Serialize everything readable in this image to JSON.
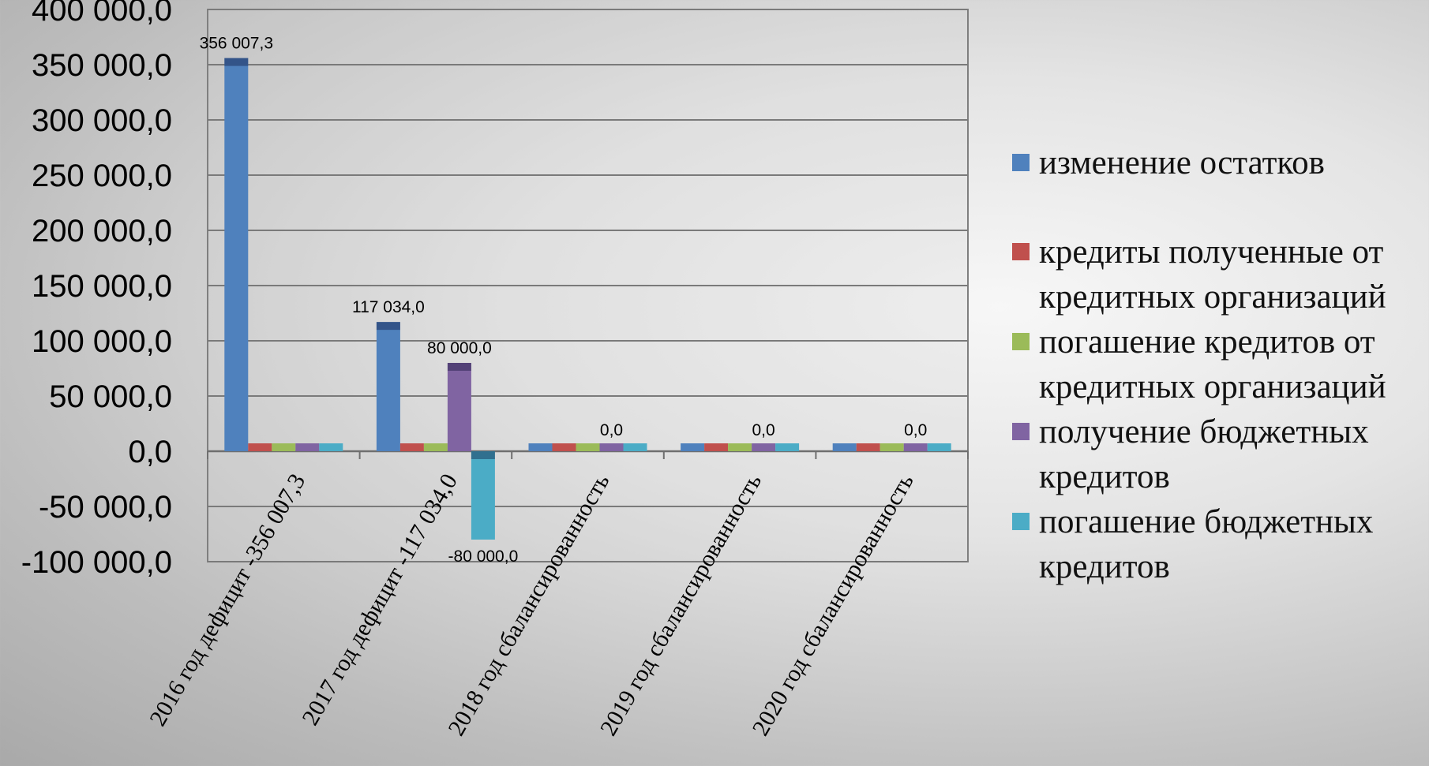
{
  "chart_data": {
    "type": "bar",
    "title": "",
    "xlabel": "",
    "ylabel": "",
    "ylim": [
      -100000,
      400000
    ],
    "yticks": [
      -100000,
      -50000,
      0,
      50000,
      100000,
      150000,
      200000,
      250000,
      300000,
      350000,
      400000
    ],
    "ytick_labels": [
      "-100 000,0",
      "-50 000,0",
      "0,0",
      "50 000,0",
      "100 000,0",
      "150 000,0",
      "200 000,0",
      "250 000,0",
      "300 000,0",
      "350 000,0",
      "400 000,0"
    ],
    "categories": [
      "2016 год дефицит -356 007,3",
      "2017 год  дефицит -117 034,0",
      "2018 год сбалансированность",
      "2019 год  сбалансированность",
      "2020 год сбалансированность"
    ],
    "series": [
      {
        "name": "изменение остатков",
        "color": "#4F81BD",
        "values": [
          356007.3,
          117034.0,
          0,
          0,
          0
        ]
      },
      {
        "name": "кредиты полученные от кредитных организаций",
        "color": "#C0504D",
        "values": [
          0,
          0,
          0,
          0,
          0
        ]
      },
      {
        "name": "погашение кредитов от кредитных организаций",
        "color": "#9BBB59",
        "values": [
          0,
          0,
          0,
          0,
          0
        ]
      },
      {
        "name": "получение бюджетных кредитов",
        "color": "#8064A2",
        "values": [
          0,
          80000.0,
          0,
          0,
          0
        ]
      },
      {
        "name": "погашение бюджетных кредитов",
        "color": "#4BACC6",
        "values": [
          0,
          -80000.0,
          0,
          0,
          0
        ]
      }
    ],
    "data_labels": [
      {
        "series": 0,
        "category": 0,
        "text": "356 007,3"
      },
      {
        "series": 0,
        "category": 1,
        "text": "117 034,0"
      },
      {
        "series": 3,
        "category": 1,
        "text": "80 000,0"
      },
      {
        "series": 4,
        "category": 1,
        "text": "-80 000,0"
      },
      {
        "series": 3,
        "category": 2,
        "text": "0,0"
      },
      {
        "series": 3,
        "category": 3,
        "text": "0,0"
      },
      {
        "series": 3,
        "category": 4,
        "text": "0,0"
      }
    ],
    "grid": true,
    "legend_position": "right"
  }
}
